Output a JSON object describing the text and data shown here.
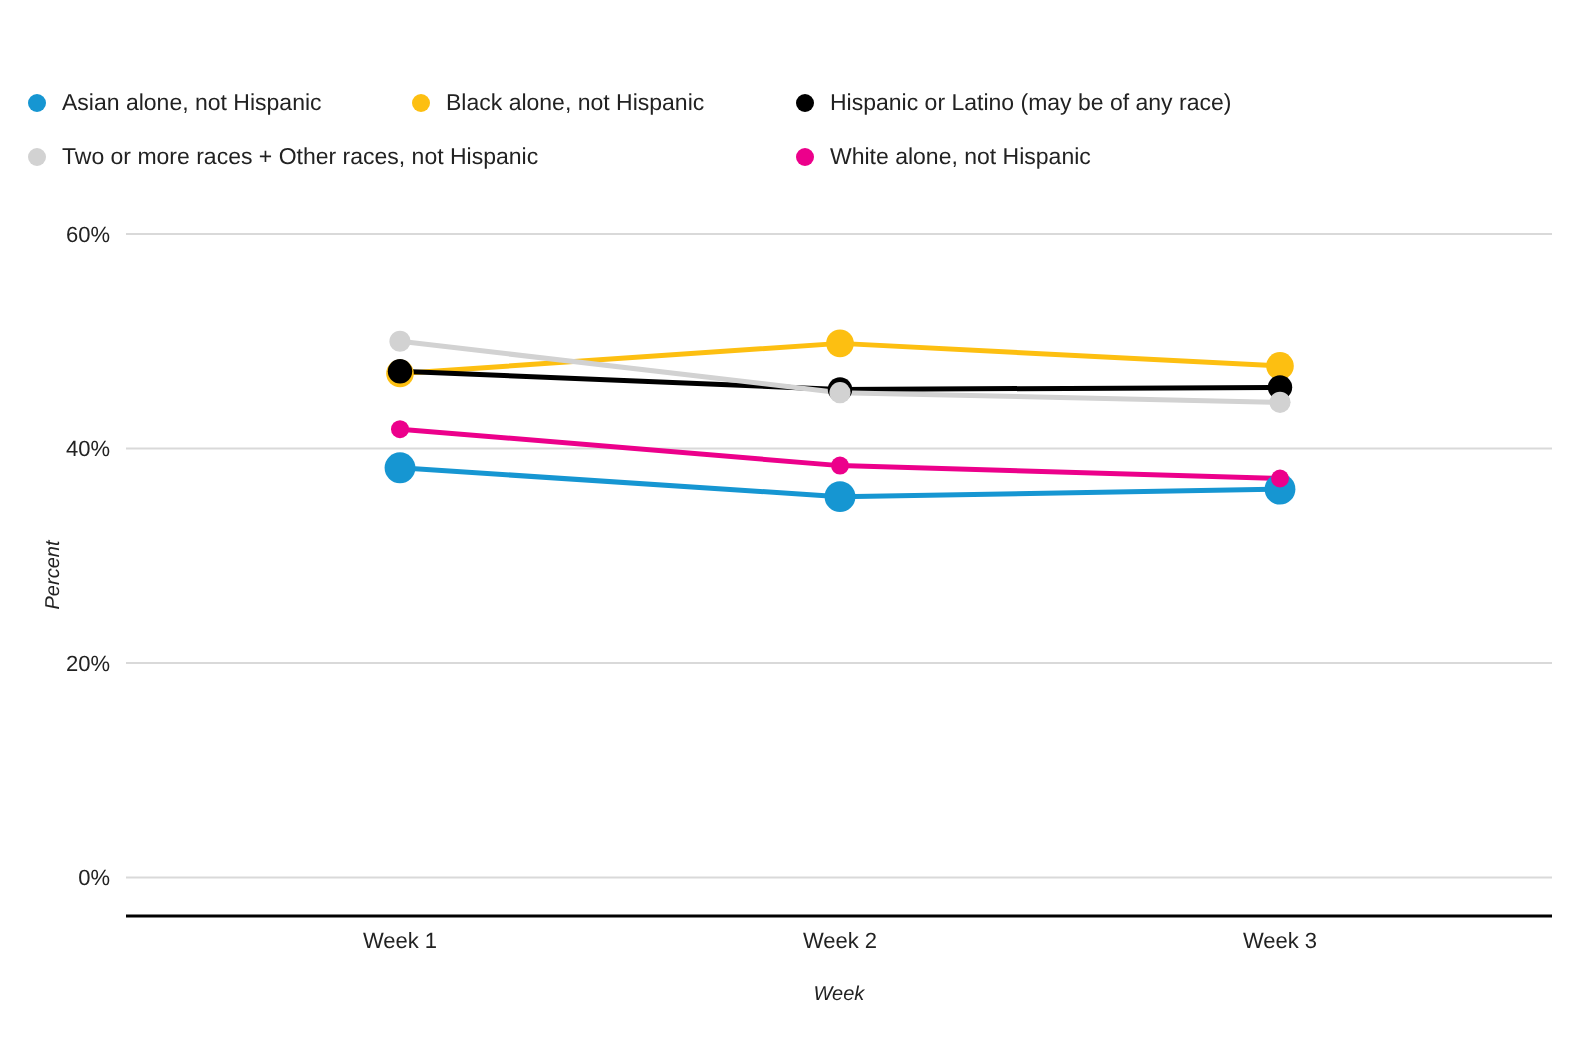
{
  "chart_data": {
    "type": "line",
    "xlabel": "Week",
    "ylabel": "Percent",
    "categories": [
      "Week 1",
      "Week 2",
      "Week 3"
    ],
    "series": [
      {
        "name": "Asian alone, not Hispanic",
        "color": "#1696d2",
        "values": [
          38.2,
          35.5,
          36.2
        ]
      },
      {
        "name": "Black alone, not Hispanic",
        "color": "#fdbf11",
        "values": [
          47.0,
          49.8,
          47.7
        ]
      },
      {
        "name": "Hispanic or Latino (may be of any race)",
        "color": "#000000",
        "values": [
          47.2,
          45.5,
          45.7
        ]
      },
      {
        "name": "Two or more races + Other races, not Hispanic",
        "color": "#d2d2d2",
        "values": [
          50.0,
          45.2,
          44.3
        ]
      },
      {
        "name": "White alone, not Hispanic",
        "color": "#ec008b",
        "values": [
          41.8,
          38.4,
          37.2
        ]
      }
    ],
    "ylim": [
      -3.6,
      60
    ],
    "yticks": [
      {
        "value": 0,
        "label": "0%"
      },
      {
        "value": 20,
        "label": "20%"
      },
      {
        "value": 40,
        "label": "40%"
      },
      {
        "value": 60,
        "label": "60%"
      }
    ],
    "grid": "y",
    "legend": "top",
    "marker": "circle",
    "line_style": "solid"
  }
}
